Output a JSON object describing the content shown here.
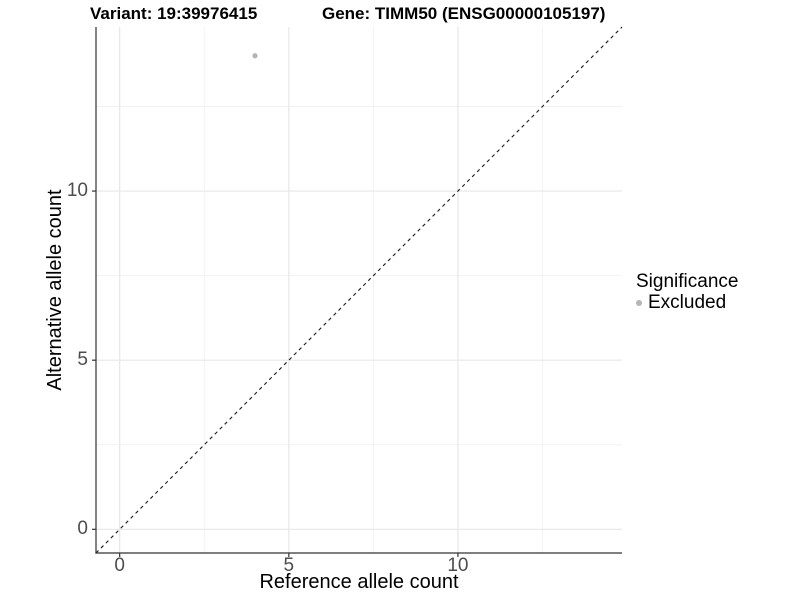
{
  "chart_data": {
    "type": "scatter",
    "titles": [
      "Variant: 19:39976415",
      "Gene: TIMM50 (ENSG00000105197)"
    ],
    "xlabel": "Reference allele count",
    "ylabel": "Alternative allele count",
    "xlim": [
      -0.7,
      14.85
    ],
    "ylim": [
      -0.7,
      14.85
    ],
    "xticks": [
      "0",
      "5",
      "10"
    ],
    "yticks": [
      "0",
      "5",
      "10"
    ],
    "xtick_values": [
      0,
      5,
      10
    ],
    "ytick_values": [
      0,
      5,
      10
    ],
    "minor_tick_values": [
      2.5,
      7.5,
      12.5
    ],
    "grid": "on",
    "legend": {
      "title": "Significance",
      "position": "right"
    },
    "series": [
      {
        "name": "Excluded",
        "color": "#b5b5b5",
        "points": [
          {
            "x": 4,
            "y": 14
          }
        ]
      }
    ],
    "reference_line": {
      "kind": "identity y=x",
      "style": "dashed",
      "color": "#1a1a1a"
    },
    "style": {
      "major_grid_color": "#e7e7e7",
      "minor_grid_color": "#f2f2f2",
      "axis_line_color": "#333333",
      "tick_label_color": "#4d4d4d",
      "background": "#ffffff"
    }
  }
}
